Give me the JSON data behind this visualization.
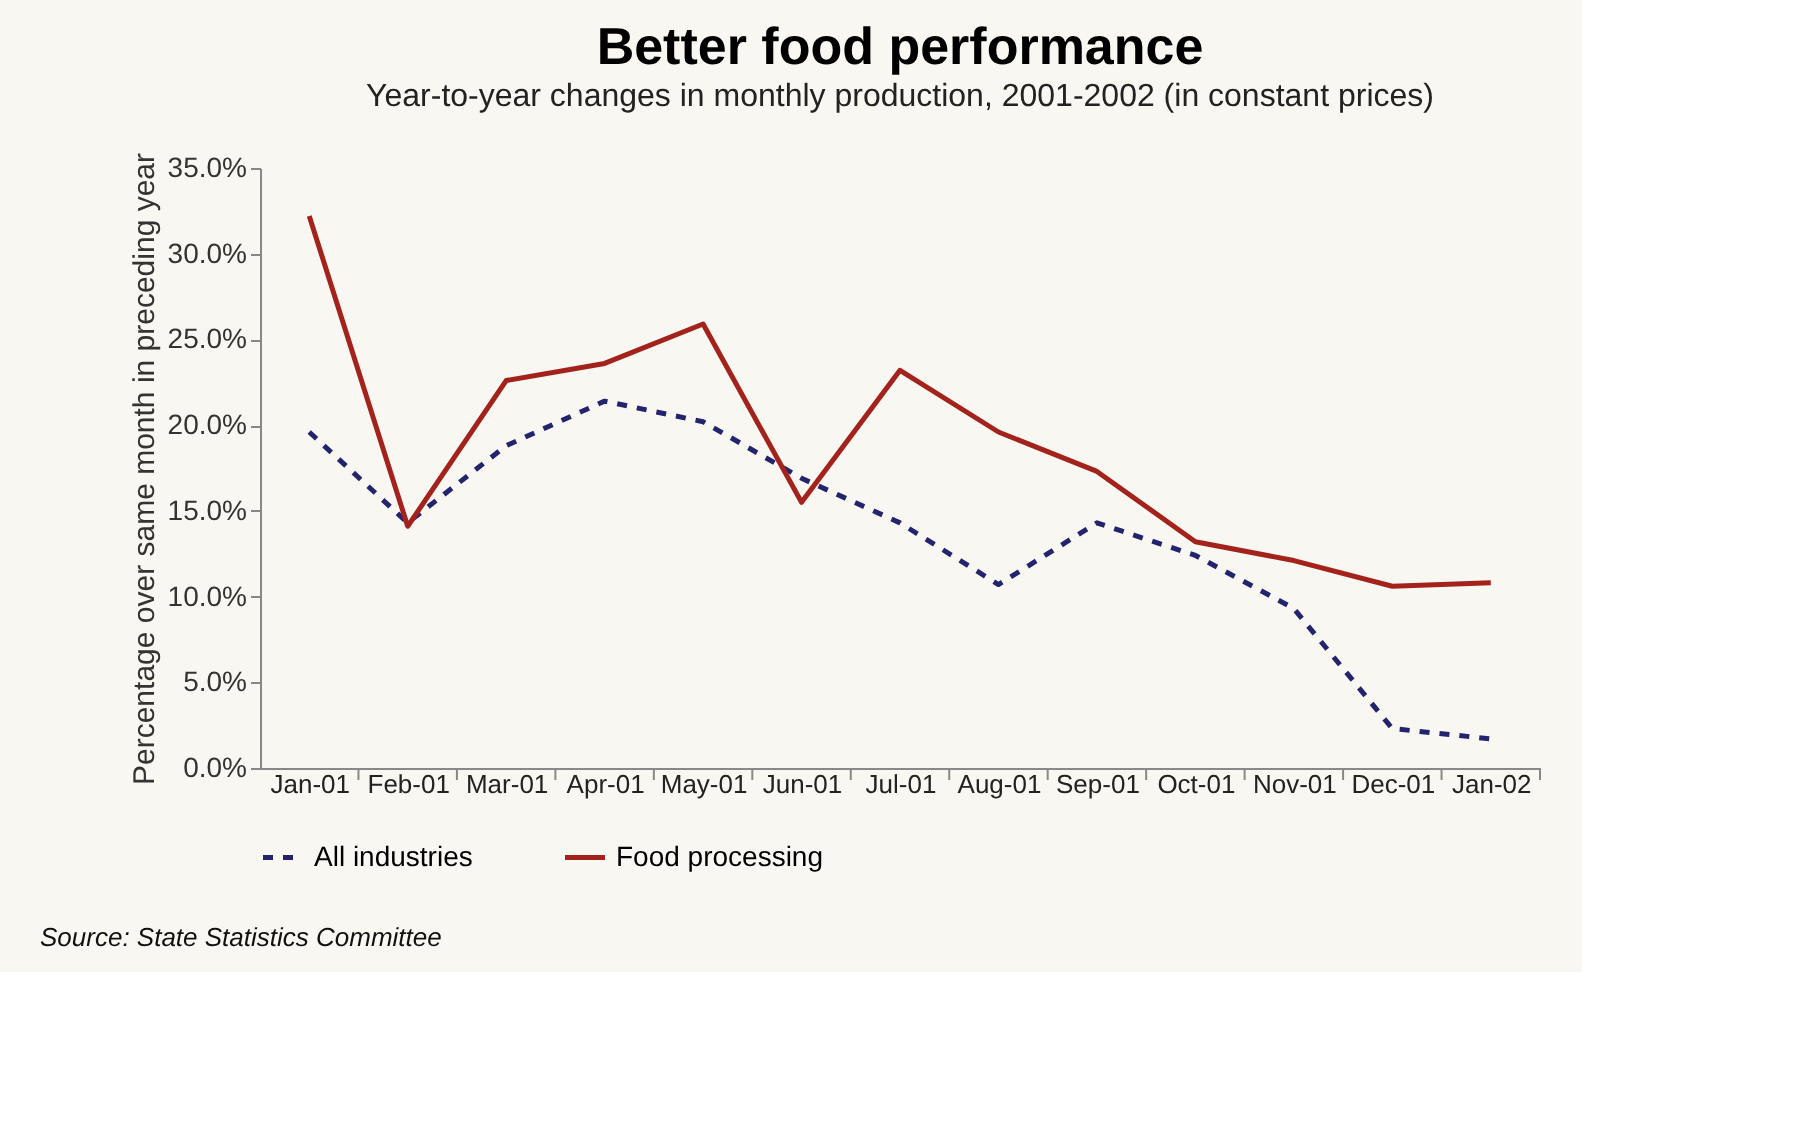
{
  "chart_data": {
    "type": "line",
    "title": "Better food performance",
    "subtitle": "Year-to-year changes in monthly production, 2001-2002 (in constant prices)",
    "ylabel": "Percentage over same month in preceding year",
    "categories": [
      "Jan-01",
      "Feb-01",
      "Mar-01",
      "Apr-01",
      "May-01",
      "Jun-01",
      "Jul-01",
      "Aug-01",
      "Sep-01",
      "Oct-01",
      "Nov-01",
      "Dec-01",
      "Jan-02"
    ],
    "series": [
      {
        "name": "All industries",
        "color": "#23236e",
        "line_style": "dashed",
        "values": [
          19.6,
          14.3,
          18.8,
          21.4,
          20.2,
          16.9,
          14.3,
          10.7,
          14.3,
          12.4,
          9.3,
          2.3,
          1.7
        ]
      },
      {
        "name": "Food processing",
        "color": "#a3231c",
        "line_style": "solid",
        "values": [
          32.2,
          14.1,
          22.6,
          23.6,
          25.9,
          15.5,
          23.2,
          19.6,
          17.3,
          13.2,
          12.1,
          10.6,
          10.8
        ]
      }
    ],
    "ylim": [
      0,
      35
    ],
    "yticks": [
      {
        "value": 0,
        "label": "0.0%"
      },
      {
        "value": 5,
        "label": "5.0%"
      },
      {
        "value": 10,
        "label": "10.0%"
      },
      {
        "value": 15,
        "label": "15.0%"
      },
      {
        "value": 20,
        "label": "20.0%"
      },
      {
        "value": 25,
        "label": "25.0%"
      },
      {
        "value": 30,
        "label": "30.0%"
      },
      {
        "value": 35,
        "label": "35.0%"
      }
    ],
    "grid": false,
    "legend": "bottom",
    "marker": "none",
    "annotations": [
      "Source: State Statistics Committee"
    ]
  }
}
